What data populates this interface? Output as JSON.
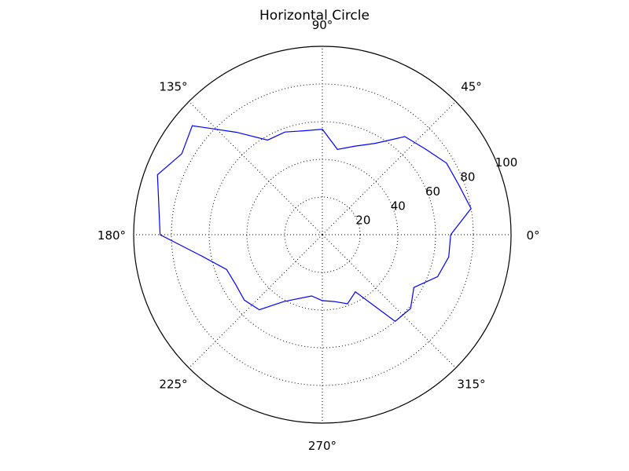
{
  "chart_data": {
    "type": "line",
    "projection": "polar",
    "title": "Horizontal Circle",
    "theta_unit": "degrees",
    "theta_tick_labels": [
      "0°",
      "45°",
      "90°",
      "135°",
      "180°",
      "225°",
      "270°",
      "315°"
    ],
    "theta_ticks": [
      0,
      45,
      90,
      135,
      180,
      225,
      270,
      315
    ],
    "r_ticks": [
      20,
      40,
      60,
      80,
      100
    ],
    "r_tick_labels": [
      "20",
      "40",
      "60",
      "80",
      "100"
    ],
    "rlim": [
      0,
      100
    ],
    "grid": "dotted",
    "series": [
      {
        "color": "#0000ff",
        "theta": [
          0,
          10,
          20,
          30,
          40,
          50,
          60,
          70,
          80,
          90,
          100,
          110,
          120,
          130,
          140,
          150,
          160,
          170,
          180,
          190,
          200,
          210,
          220,
          230,
          240,
          250,
          260,
          270,
          280,
          290,
          300,
          310,
          320,
          330,
          340,
          350,
          360
        ],
        "r": [
          68,
          80,
          77,
          76,
          71,
          68,
          56,
          50,
          46,
          56,
          56,
          58,
          58,
          71,
          90,
          86,
          93,
          88,
          86,
          65,
          54,
          53,
          54,
          52,
          41,
          36,
          33,
          35,
          36,
          39,
          35,
          60,
          61,
          56,
          65,
          68,
          68
        ]
      }
    ]
  }
}
